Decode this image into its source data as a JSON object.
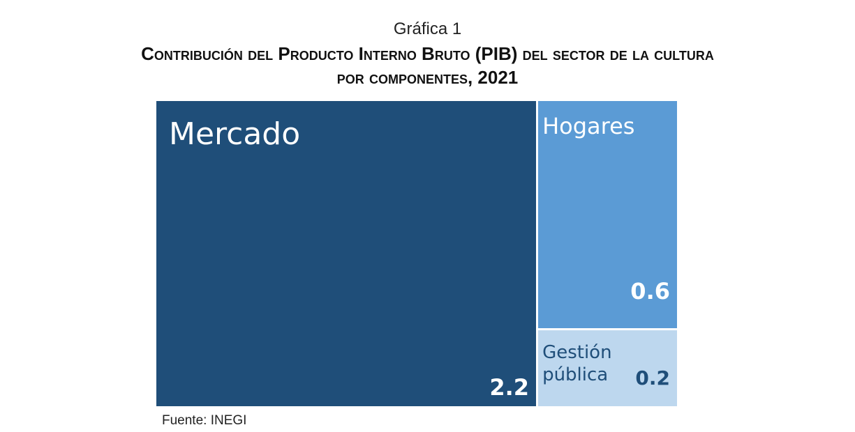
{
  "chart_data": {
    "type": "treemap",
    "title": "Gráfica 1",
    "subtitle": "Contribución del Producto Interno Bruto (PIB) del sector de la cultura por componentes, 2021",
    "categories": [
      "Mercado",
      "Hogares",
      "Gestión pública"
    ],
    "values": [
      2.2,
      0.6,
      0.2
    ],
    "colors": [
      "#1f4e79",
      "#5b9bd5",
      "#bdd7ee"
    ],
    "source": "Fuente: INEGI"
  }
}
